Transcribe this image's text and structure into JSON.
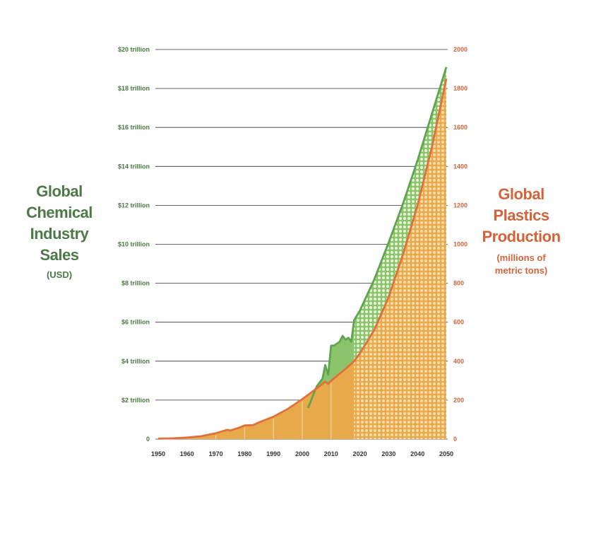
{
  "left_axis_title": {
    "lines": [
      "Global",
      "Chemical",
      "Industry",
      "Sales"
    ],
    "unit": "(USD)"
  },
  "right_axis_title": {
    "lines": [
      "Global",
      "Plastics",
      "Production"
    ],
    "unit_lines": [
      "(millions of",
      "metric tons)"
    ]
  },
  "colors": {
    "chemical_green": "#5fa44f",
    "chemical_fill": "#8cc46c",
    "plastics_orange": "#e0703c",
    "plastics_fill": "#e8a94a",
    "gridline": "#333333",
    "left_text": "#4c7a46",
    "right_text": "#d3643a"
  },
  "chart_data": {
    "type": "area",
    "x_ticks": [
      1950,
      1960,
      1970,
      1980,
      1990,
      2000,
      2010,
      2020,
      2030,
      2040,
      2050
    ],
    "xlim": [
      1950,
      2050
    ],
    "left_axis": {
      "ylim": [
        0,
        20
      ],
      "tick_values": [
        0,
        2,
        4,
        6,
        8,
        10,
        12,
        14,
        16,
        18,
        20
      ],
      "tick_labels": [
        "0",
        "$2 trillion",
        "$4 trillion",
        "$6 trillion",
        "$8 trillion",
        "$10 trillion",
        "$12 trillion",
        "$14 trillion",
        "$16 trillion",
        "$18 trillion",
        "$20 trillion"
      ]
    },
    "right_axis": {
      "ylim": [
        0,
        2000
      ],
      "tick_values": [
        0,
        200,
        400,
        600,
        800,
        1000,
        1200,
        1400,
        1600,
        1800,
        2000
      ],
      "tick_labels": [
        "0",
        "200",
        "400",
        "600",
        "800",
        "1000",
        "1200",
        "1400",
        "1600",
        "1800",
        "2000"
      ]
    },
    "projection_start": 2018,
    "series": [
      {
        "axis": "right",
        "x": [
          1950,
          1955,
          1960,
          1965,
          1970,
          1974,
          1975,
          1978,
          1980,
          1983,
          1985,
          1990,
          1995,
          2000,
          2005,
          2008,
          2009,
          2010,
          2015,
          2018,
          2020,
          2025,
          2030,
          2035,
          2040,
          2045,
          2050
        ],
        "y": [
          2,
          4,
          8,
          15,
          30,
          48,
          44,
          58,
          70,
          72,
          86,
          115,
          155,
          205,
          260,
          295,
          283,
          300,
          360,
          400,
          440,
          560,
          730,
          950,
          1200,
          1500,
          1850
        ]
      },
      {
        "axis": "left",
        "x": [
          2002,
          2005,
          2007,
          2008,
          2009,
          2010,
          2011,
          2012,
          2013,
          2014,
          2015,
          2016,
          2017,
          2018,
          2020,
          2025,
          2030,
          2035,
          2040,
          2045,
          2050
        ],
        "y": [
          1.6,
          2.7,
          3.1,
          3.8,
          3.3,
          4.8,
          4.8,
          4.9,
          5.0,
          5.3,
          5.1,
          5.2,
          5.0,
          6.1,
          6.6,
          8.2,
          10.1,
          12.1,
          14.3,
          16.7,
          19.1
        ]
      }
    ]
  }
}
